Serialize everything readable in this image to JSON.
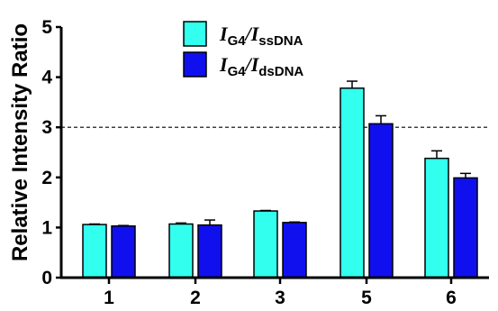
{
  "chart_data": {
    "type": "bar",
    "title": "",
    "xlabel": "",
    "ylabel": "Relative Intensity Ratio",
    "categories": [
      "1",
      "2",
      "3",
      "5",
      "6"
    ],
    "ylim": [
      0,
      5
    ],
    "yticks": [
      "0",
      "1",
      "2",
      "3",
      "4",
      "5"
    ],
    "reference_line": {
      "y": 3,
      "style": "dashed"
    },
    "legend_position": "top-center",
    "series": [
      {
        "name": "IG4/IssDNA",
        "legend_main": "I",
        "legend_sub1": "G4",
        "legend_slash": "/I",
        "legend_sub2": "ssDNA",
        "color": "#33ffee",
        "values": [
          1.06,
          1.07,
          1.33,
          3.78,
          2.38
        ],
        "errors": [
          0.01,
          0.02,
          0.01,
          0.14,
          0.15
        ]
      },
      {
        "name": "IG4/IdsDNA",
        "legend_main": "I",
        "legend_sub1": "G4",
        "legend_slash": "/I",
        "legend_sub2": "dsDNA",
        "color": "#1010ee",
        "values": [
          1.03,
          1.05,
          1.1,
          3.07,
          1.99
        ],
        "errors": [
          0.01,
          0.1,
          0.01,
          0.16,
          0.09
        ]
      }
    ]
  }
}
